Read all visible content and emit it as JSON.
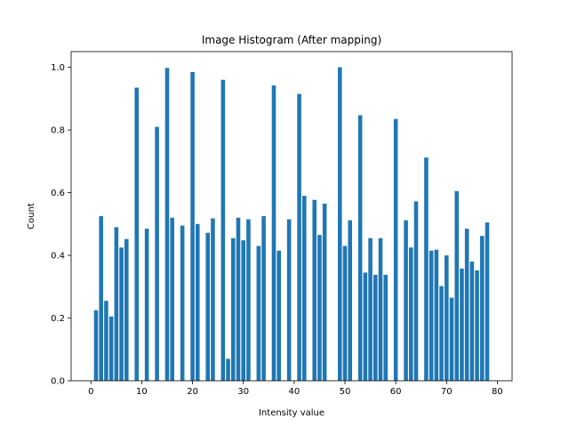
{
  "chart_data": {
    "type": "bar",
    "title": "Image Histogram (After mapping)",
    "xlabel": "Intensity value",
    "ylabel": "Count",
    "xlim": [
      -3.9,
      82.9
    ],
    "ylim": [
      0,
      1.05
    ],
    "xticks": [
      0,
      10,
      20,
      30,
      40,
      50,
      60,
      70,
      80
    ],
    "yticks": [
      0.0,
      0.2,
      0.4,
      0.6,
      0.8,
      1.0
    ],
    "xtick_labels": [
      "0",
      "10",
      "20",
      "30",
      "40",
      "50",
      "60",
      "70",
      "80"
    ],
    "ytick_labels": [
      "0.0",
      "0.2",
      "0.4",
      "0.6",
      "0.8",
      "1.0"
    ],
    "bar_width": 0.8,
    "grid": false,
    "color": "#1f77b4",
    "x": [
      1,
      2,
      3,
      4,
      5,
      6,
      7,
      9,
      11,
      13,
      15,
      16,
      18,
      20,
      21,
      23,
      24,
      26,
      27,
      28,
      29,
      30,
      31,
      33,
      34,
      36,
      37,
      39,
      41,
      42,
      44,
      45,
      46,
      49,
      50,
      51,
      53,
      54,
      55,
      56,
      57,
      58,
      60,
      62,
      63,
      64,
      66,
      67,
      68,
      69,
      70,
      71,
      72,
      73,
      74,
      75,
      76,
      77,
      78
    ],
    "values": [
      0.225,
      0.525,
      0.255,
      0.205,
      0.49,
      0.425,
      0.452,
      0.935,
      0.485,
      0.81,
      0.998,
      0.52,
      0.495,
      0.985,
      0.5,
      0.472,
      0.518,
      0.96,
      0.07,
      0.455,
      0.52,
      0.448,
      0.515,
      0.43,
      0.525,
      0.942,
      0.415,
      0.515,
      0.915,
      0.59,
      0.577,
      0.465,
      0.565,
      1.0,
      0.43,
      0.512,
      0.847,
      0.345,
      0.455,
      0.338,
      0.455,
      0.338,
      0.835,
      0.512,
      0.425,
      0.572,
      0.712,
      0.415,
      0.418,
      0.302,
      0.4,
      0.265,
      0.605,
      0.358,
      0.485,
      0.38,
      0.352,
      0.462,
      0.505
    ]
  }
}
